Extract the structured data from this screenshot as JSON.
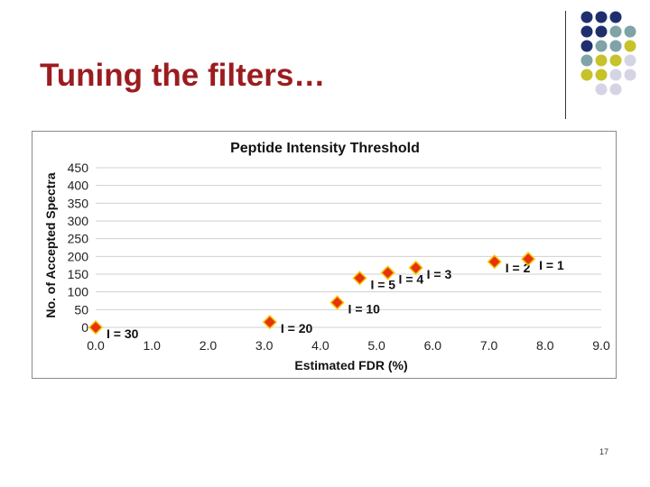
{
  "slide": {
    "title": "Tuning the filters…",
    "page_number": "17"
  },
  "colors": {
    "title": "#9b1c1f",
    "marker_fill": "#e8320c",
    "marker_stroke": "#f5c400",
    "dot_navy": "#1f2f6e",
    "dot_teal": "#7fa3a6",
    "dot_olive": "#c6c22a",
    "dot_lavender": "#d4d4e4"
  },
  "decoration": {
    "dot_grid": [
      [
        "navy",
        "navy",
        "navy",
        "none"
      ],
      [
        "navy",
        "navy",
        "teal",
        "teal"
      ],
      [
        "navy",
        "teal",
        "teal",
        "olive"
      ],
      [
        "teal",
        "olive",
        "olive",
        "lavender"
      ],
      [
        "olive",
        "olive",
        "lavender",
        "lavender"
      ],
      [
        "none",
        "lavender",
        "lavender",
        "none"
      ]
    ]
  },
  "chart_data": {
    "type": "scatter",
    "title": "Peptide Intensity Threshold",
    "xlabel": "Estimated FDR (%)",
    "ylabel": "No. of Accepted Spectra",
    "xlim": [
      0,
      9
    ],
    "ylim": [
      0,
      450
    ],
    "x_ticks": [
      "0.0",
      "1.0",
      "2.0",
      "3.0",
      "4.0",
      "5.0",
      "6.0",
      "7.0",
      "8.0",
      "9.0"
    ],
    "y_ticks": [
      "0",
      "50",
      "100",
      "150",
      "200",
      "250",
      "300",
      "350",
      "400",
      "450"
    ],
    "grid": "horizontal",
    "points": [
      {
        "x": 0.0,
        "y": 0,
        "label": "I = 30"
      },
      {
        "x": 3.1,
        "y": 15,
        "label": "I = 20"
      },
      {
        "x": 4.3,
        "y": 70,
        "label": "I = 10"
      },
      {
        "x": 4.7,
        "y": 139,
        "label": "I = 5"
      },
      {
        "x": 5.2,
        "y": 154,
        "label": "I = 4"
      },
      {
        "x": 5.7,
        "y": 168,
        "label": "I = 3"
      },
      {
        "x": 7.1,
        "y": 185,
        "label": "I = 2"
      },
      {
        "x": 7.7,
        "y": 193,
        "label": "I = 1"
      }
    ]
  }
}
